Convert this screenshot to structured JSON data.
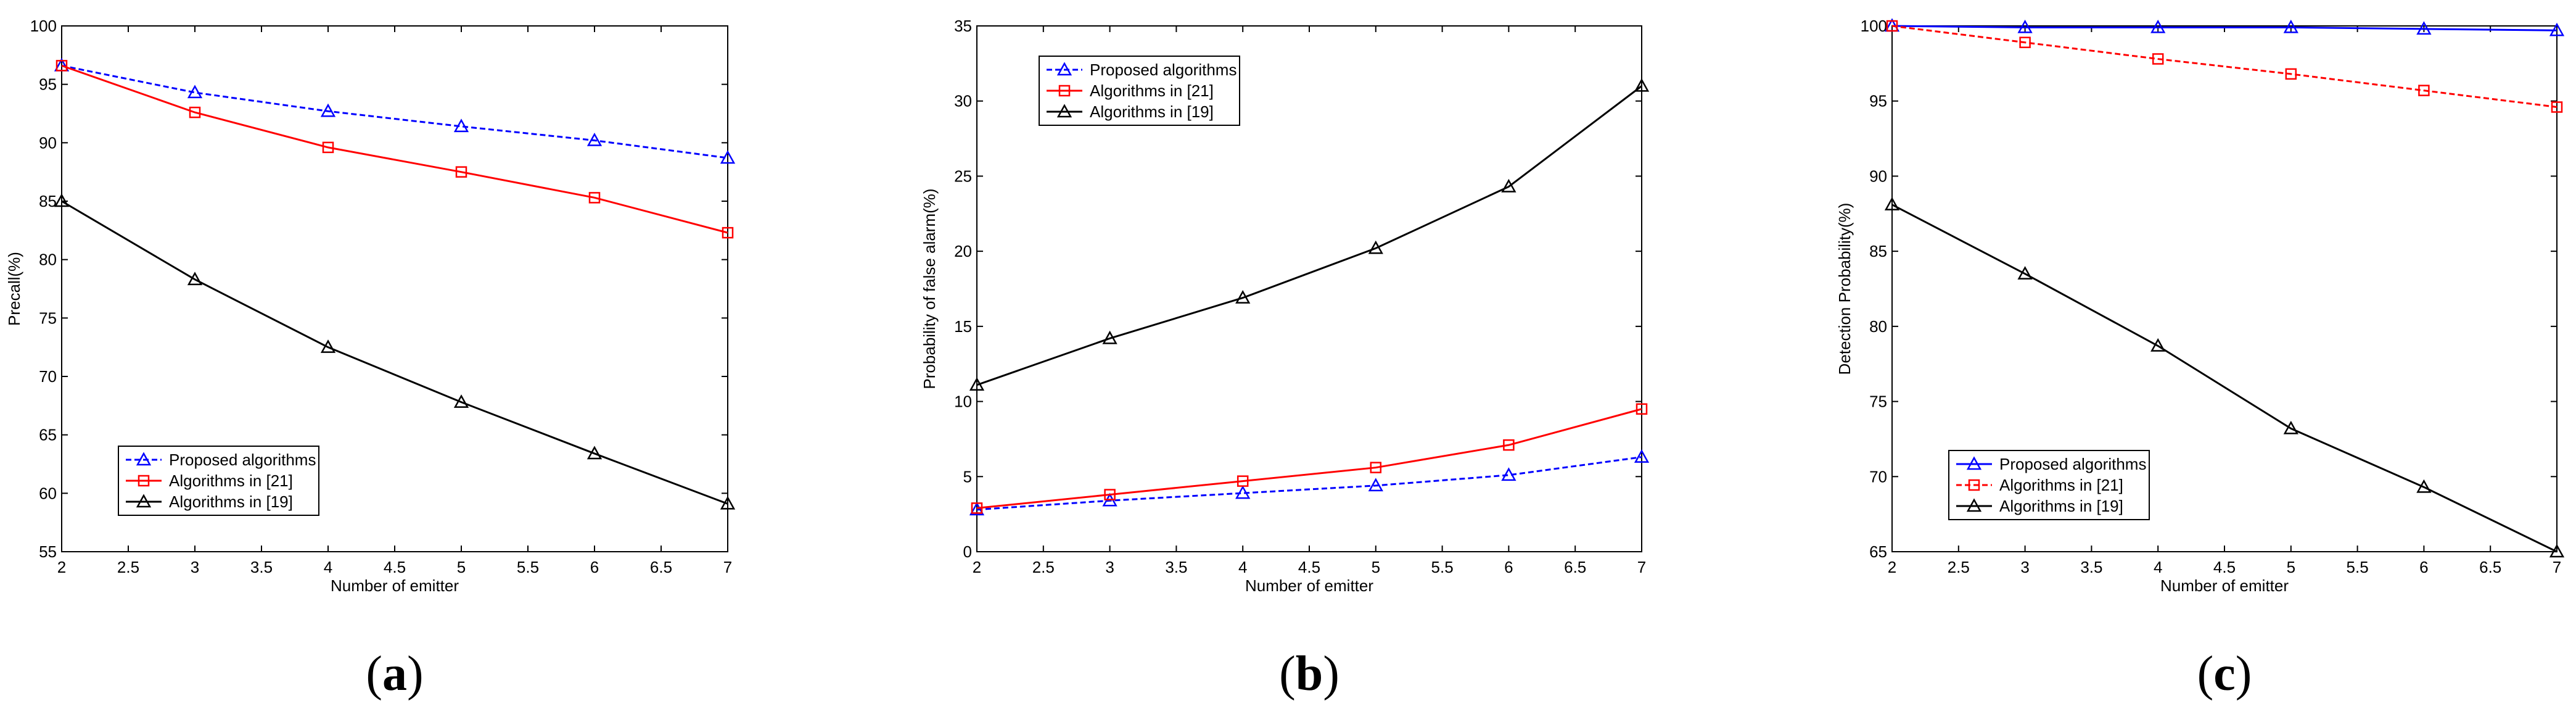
{
  "chart_data": [
    {
      "type": "line",
      "panel_label": "a",
      "xlabel": "Number of emitter",
      "ylabel": "Precall(%)",
      "xlim": [
        2,
        7
      ],
      "ylim": [
        55,
        100
      ],
      "xticks": [
        "2",
        "2.5",
        "3",
        "3.5",
        "4",
        "4.5",
        "5",
        "5.5",
        "6",
        "6.5",
        "7"
      ],
      "yticks": [
        "55",
        "60",
        "65",
        "70",
        "75",
        "80",
        "85",
        "90",
        "95",
        "100"
      ],
      "legend_position": "bottom-left",
      "x": [
        2,
        3,
        4,
        5,
        6,
        7
      ],
      "series": [
        {
          "name": "Proposed algorithms",
          "color": "#0000ff",
          "marker": "triangle",
          "dash": "dashed",
          "values": [
            96.6,
            94.3,
            92.7,
            91.4,
            90.2,
            88.7
          ]
        },
        {
          "name": "Algorithms in [21]",
          "color": "#ff0000",
          "marker": "square",
          "dash": "solid",
          "values": [
            96.6,
            92.6,
            89.6,
            87.5,
            85.3,
            82.3
          ]
        },
        {
          "name": "Algorithms in [19]",
          "color": "#000000",
          "marker": "triangle",
          "dash": "solid",
          "values": [
            85.0,
            78.3,
            72.5,
            67.8,
            63.4,
            59.1
          ]
        }
      ]
    },
    {
      "type": "line",
      "panel_label": "b",
      "xlabel": "Number of emitter",
      "ylabel": "Probability of false alarm(%)",
      "xlim": [
        2,
        7
      ],
      "ylim": [
        0,
        35
      ],
      "xticks": [
        "2",
        "2.5",
        "3",
        "3.5",
        "4",
        "4.5",
        "5",
        "5.5",
        "6",
        "6.5",
        "7"
      ],
      "yticks": [
        "0",
        "5",
        "10",
        "15",
        "20",
        "25",
        "30",
        "35"
      ],
      "legend_position": "top-left",
      "x": [
        2,
        3,
        4,
        5,
        6,
        7
      ],
      "series": [
        {
          "name": "Proposed algorithms",
          "color": "#0000ff",
          "marker": "triangle",
          "dash": "dashed",
          "values": [
            2.8,
            3.4,
            3.9,
            4.4,
            5.1,
            6.3
          ]
        },
        {
          "name": "Algorithms in [21]",
          "color": "#ff0000",
          "marker": "square",
          "dash": "solid",
          "values": [
            2.9,
            3.8,
            4.7,
            5.6,
            7.1,
            9.5
          ]
        },
        {
          "name": "Algorithms in [19]",
          "color": "#000000",
          "marker": "triangle",
          "dash": "solid",
          "values": [
            11.1,
            14.2,
            16.9,
            20.2,
            24.3,
            31.0
          ]
        }
      ]
    },
    {
      "type": "line",
      "panel_label": "c",
      "xlabel": "Number of emitter",
      "ylabel": "Detection Probability(%)",
      "xlim": [
        2,
        7
      ],
      "ylim": [
        65,
        100
      ],
      "xticks": [
        "2",
        "2.5",
        "3",
        "3.5",
        "4",
        "4.5",
        "5",
        "5.5",
        "6",
        "6.5",
        "7"
      ],
      "yticks": [
        "65",
        "70",
        "75",
        "80",
        "85",
        "90",
        "95",
        "100"
      ],
      "legend_position": "bottom-left",
      "x": [
        2,
        3,
        4,
        5,
        6,
        7
      ],
      "series": [
        {
          "name": "Proposed algorithms",
          "color": "#0000ff",
          "marker": "triangle",
          "dash": "solid",
          "values": [
            100.0,
            99.9,
            99.9,
            99.9,
            99.8,
            99.7
          ]
        },
        {
          "name": "Algorithms in [21]",
          "color": "#ff0000",
          "marker": "square",
          "dash": "dashed",
          "values": [
            100.0,
            98.9,
            97.8,
            96.8,
            95.7,
            94.6
          ]
        },
        {
          "name": "Algorithms in [19]",
          "color": "#000000",
          "marker": "triangle",
          "dash": "solid",
          "values": [
            88.1,
            83.5,
            78.7,
            73.2,
            69.3,
            65.0
          ]
        }
      ]
    }
  ]
}
